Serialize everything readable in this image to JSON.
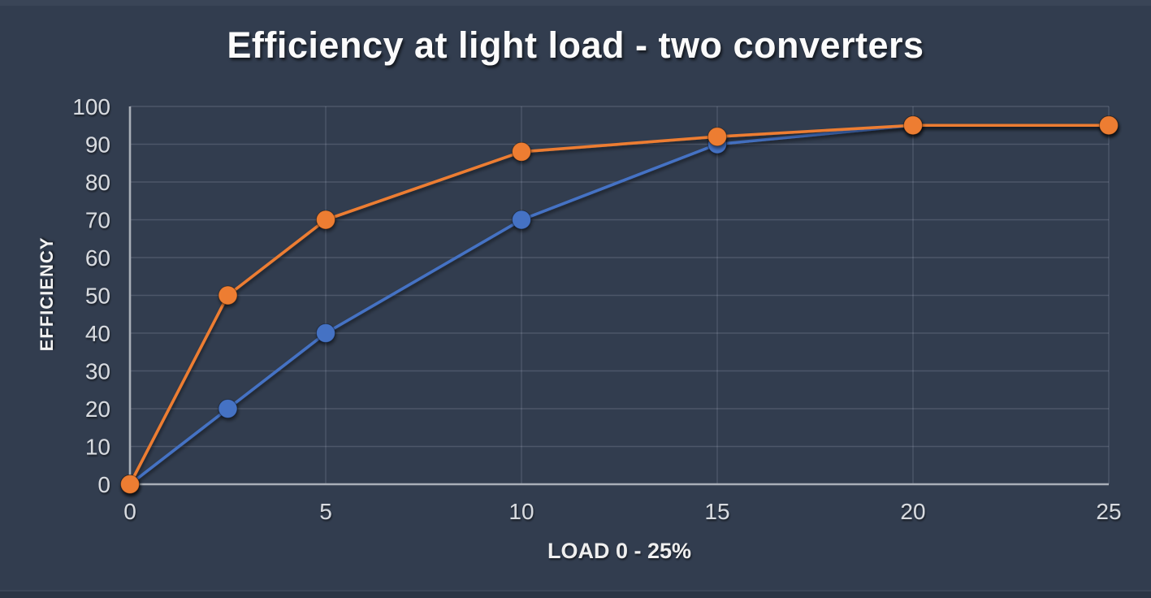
{
  "title": "Efficiency at light load - two converters",
  "colors": {
    "background": "#323d4f",
    "top_strip": "#3a4557",
    "bottom_strip": "#2b3545",
    "title_text": "#fbfbfb",
    "axis_label_text": "#f3f3f3",
    "tick_text": "#d8dbe0",
    "axis_line": "#a9afb8",
    "gridline": "rgba(212,221,236,0.17)",
    "series_blue": "#4472c4",
    "series_orange": "#ed7d31"
  },
  "chart_data": {
    "type": "line",
    "title": "Efficiency at light load - two converters",
    "xlabel": "LOAD 0 - 25%",
    "ylabel": "EFFICIENCY",
    "xlim": [
      0,
      25
    ],
    "ylim": [
      0,
      100
    ],
    "x_ticks": [
      0,
      5,
      10,
      15,
      20,
      25
    ],
    "y_ticks": [
      0,
      10,
      20,
      30,
      40,
      50,
      60,
      70,
      80,
      90,
      100
    ],
    "grid": true,
    "legend_position": "none",
    "x": [
      0,
      2.5,
      5,
      10,
      15,
      20,
      25
    ],
    "series": [
      {
        "name": "blue series",
        "color": "#4472c4",
        "values": [
          0,
          20,
          40,
          70,
          90,
          95,
          95
        ]
      },
      {
        "name": "orange series",
        "color": "#ed7d31",
        "values": [
          0,
          50,
          70,
          88,
          92,
          95,
          95
        ]
      }
    ]
  }
}
